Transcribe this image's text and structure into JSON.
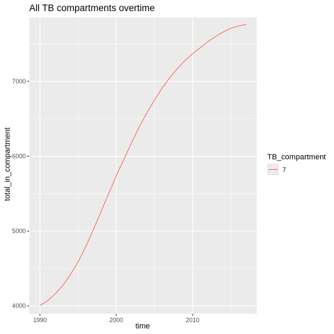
{
  "chart_data": {
    "type": "line",
    "title": "All TB compartments overtime",
    "xlabel": "time",
    "ylabel": "total_in_compartment",
    "xlim": [
      1988.6,
      2018.4
    ],
    "ylim": [
      3895,
      7855
    ],
    "x_ticks": [
      1990,
      2000,
      2010
    ],
    "x_tick_labels": [
      "1990",
      "2000",
      "2010"
    ],
    "x_minor_ticks": [
      1995,
      2005,
      2015
    ],
    "y_ticks": [
      4000,
      5000,
      6000,
      7000
    ],
    "y_tick_labels": [
      "4000",
      "5000",
      "6000",
      "7000"
    ],
    "y_minor_ticks": [
      4500,
      5500,
      6500,
      7500
    ],
    "grid": true,
    "legend": {
      "title": "TB_compartment",
      "placement": "right"
    },
    "series": [
      {
        "name": "7",
        "color": "#F8766D",
        "x": [
          1990,
          1991,
          1992,
          1993,
          1994,
          1995,
          1996,
          1997,
          1998,
          1999,
          2000,
          2001,
          2002,
          2003,
          2004,
          2005,
          2006,
          2007,
          2008,
          2009,
          2010,
          2011,
          2012,
          2013,
          2014,
          2015,
          2016,
          2017
        ],
        "values": [
          4005,
          4070,
          4160,
          4275,
          4420,
          4590,
          4790,
          5020,
          5260,
          5500,
          5740,
          5960,
          6180,
          6390,
          6580,
          6750,
          6910,
          7050,
          7170,
          7280,
          7370,
          7450,
          7530,
          7600,
          7660,
          7710,
          7740,
          7760
        ]
      }
    ]
  }
}
